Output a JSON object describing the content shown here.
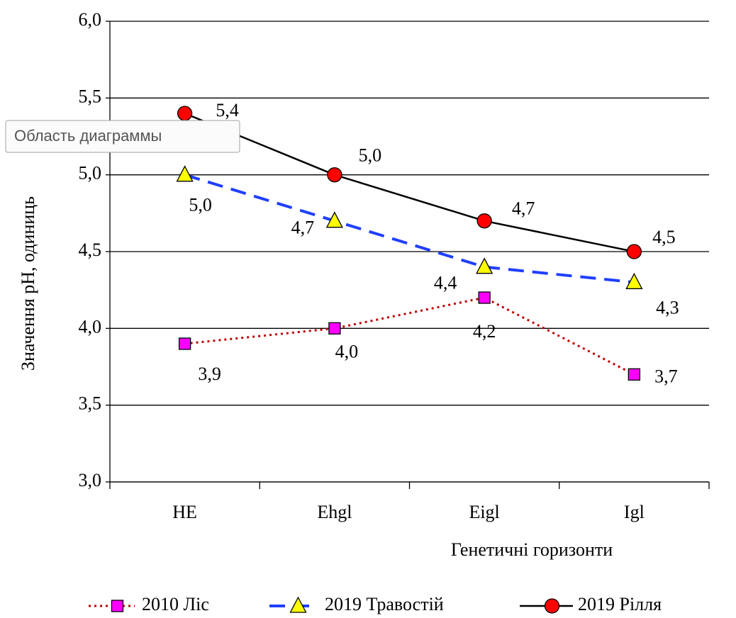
{
  "chart_data": {
    "type": "line",
    "ylabel": "Значення рН, одиниць",
    "xlabel": "Генетичні горизонти",
    "categories": [
      "HE",
      "Ehgl",
      "Eigl",
      "Igl"
    ],
    "ylim": [
      3,
      6
    ],
    "yticks": [
      {
        "value": 3,
        "label": "3,0"
      },
      {
        "value": 3.5,
        "label": "3,5"
      },
      {
        "value": 4,
        "label": "4,0"
      },
      {
        "value": 4.5,
        "label": "4,5"
      },
      {
        "value": 5,
        "label": "5,0"
      },
      {
        "value": 5.5,
        "label": "5,5"
      },
      {
        "value": 6,
        "label": "6,0"
      }
    ],
    "grid": true,
    "legend": "bottom",
    "series": [
      {
        "name": "2010 Ліс",
        "color": "#c00000",
        "marker_color": "#ff00ff",
        "marker": "square",
        "line_style": "dotted",
        "values": [
          3.9,
          4.0,
          4.2,
          3.7
        ],
        "value_labels": [
          "3,9",
          "4,0",
          "4,2",
          "3,7"
        ]
      },
      {
        "name": "2019 Травостій",
        "color": "#1f3fff",
        "marker_color": "#ffff00",
        "marker": "triangle",
        "line_style": "dashed",
        "values": [
          5.0,
          4.7,
          4.4,
          4.3
        ],
        "value_labels": [
          "5,0",
          "4,7",
          "4,4",
          "4,3"
        ]
      },
      {
        "name": "2019 Рілля",
        "color": "#000000",
        "marker_color": "#ff0000",
        "marker": "circle",
        "line_style": "solid",
        "values": [
          5.4,
          5.0,
          4.7,
          4.5
        ],
        "value_labels": [
          "5,4",
          "5,0",
          "4,7",
          "4,5"
        ]
      }
    ]
  },
  "tooltip": "Область диаграммы"
}
